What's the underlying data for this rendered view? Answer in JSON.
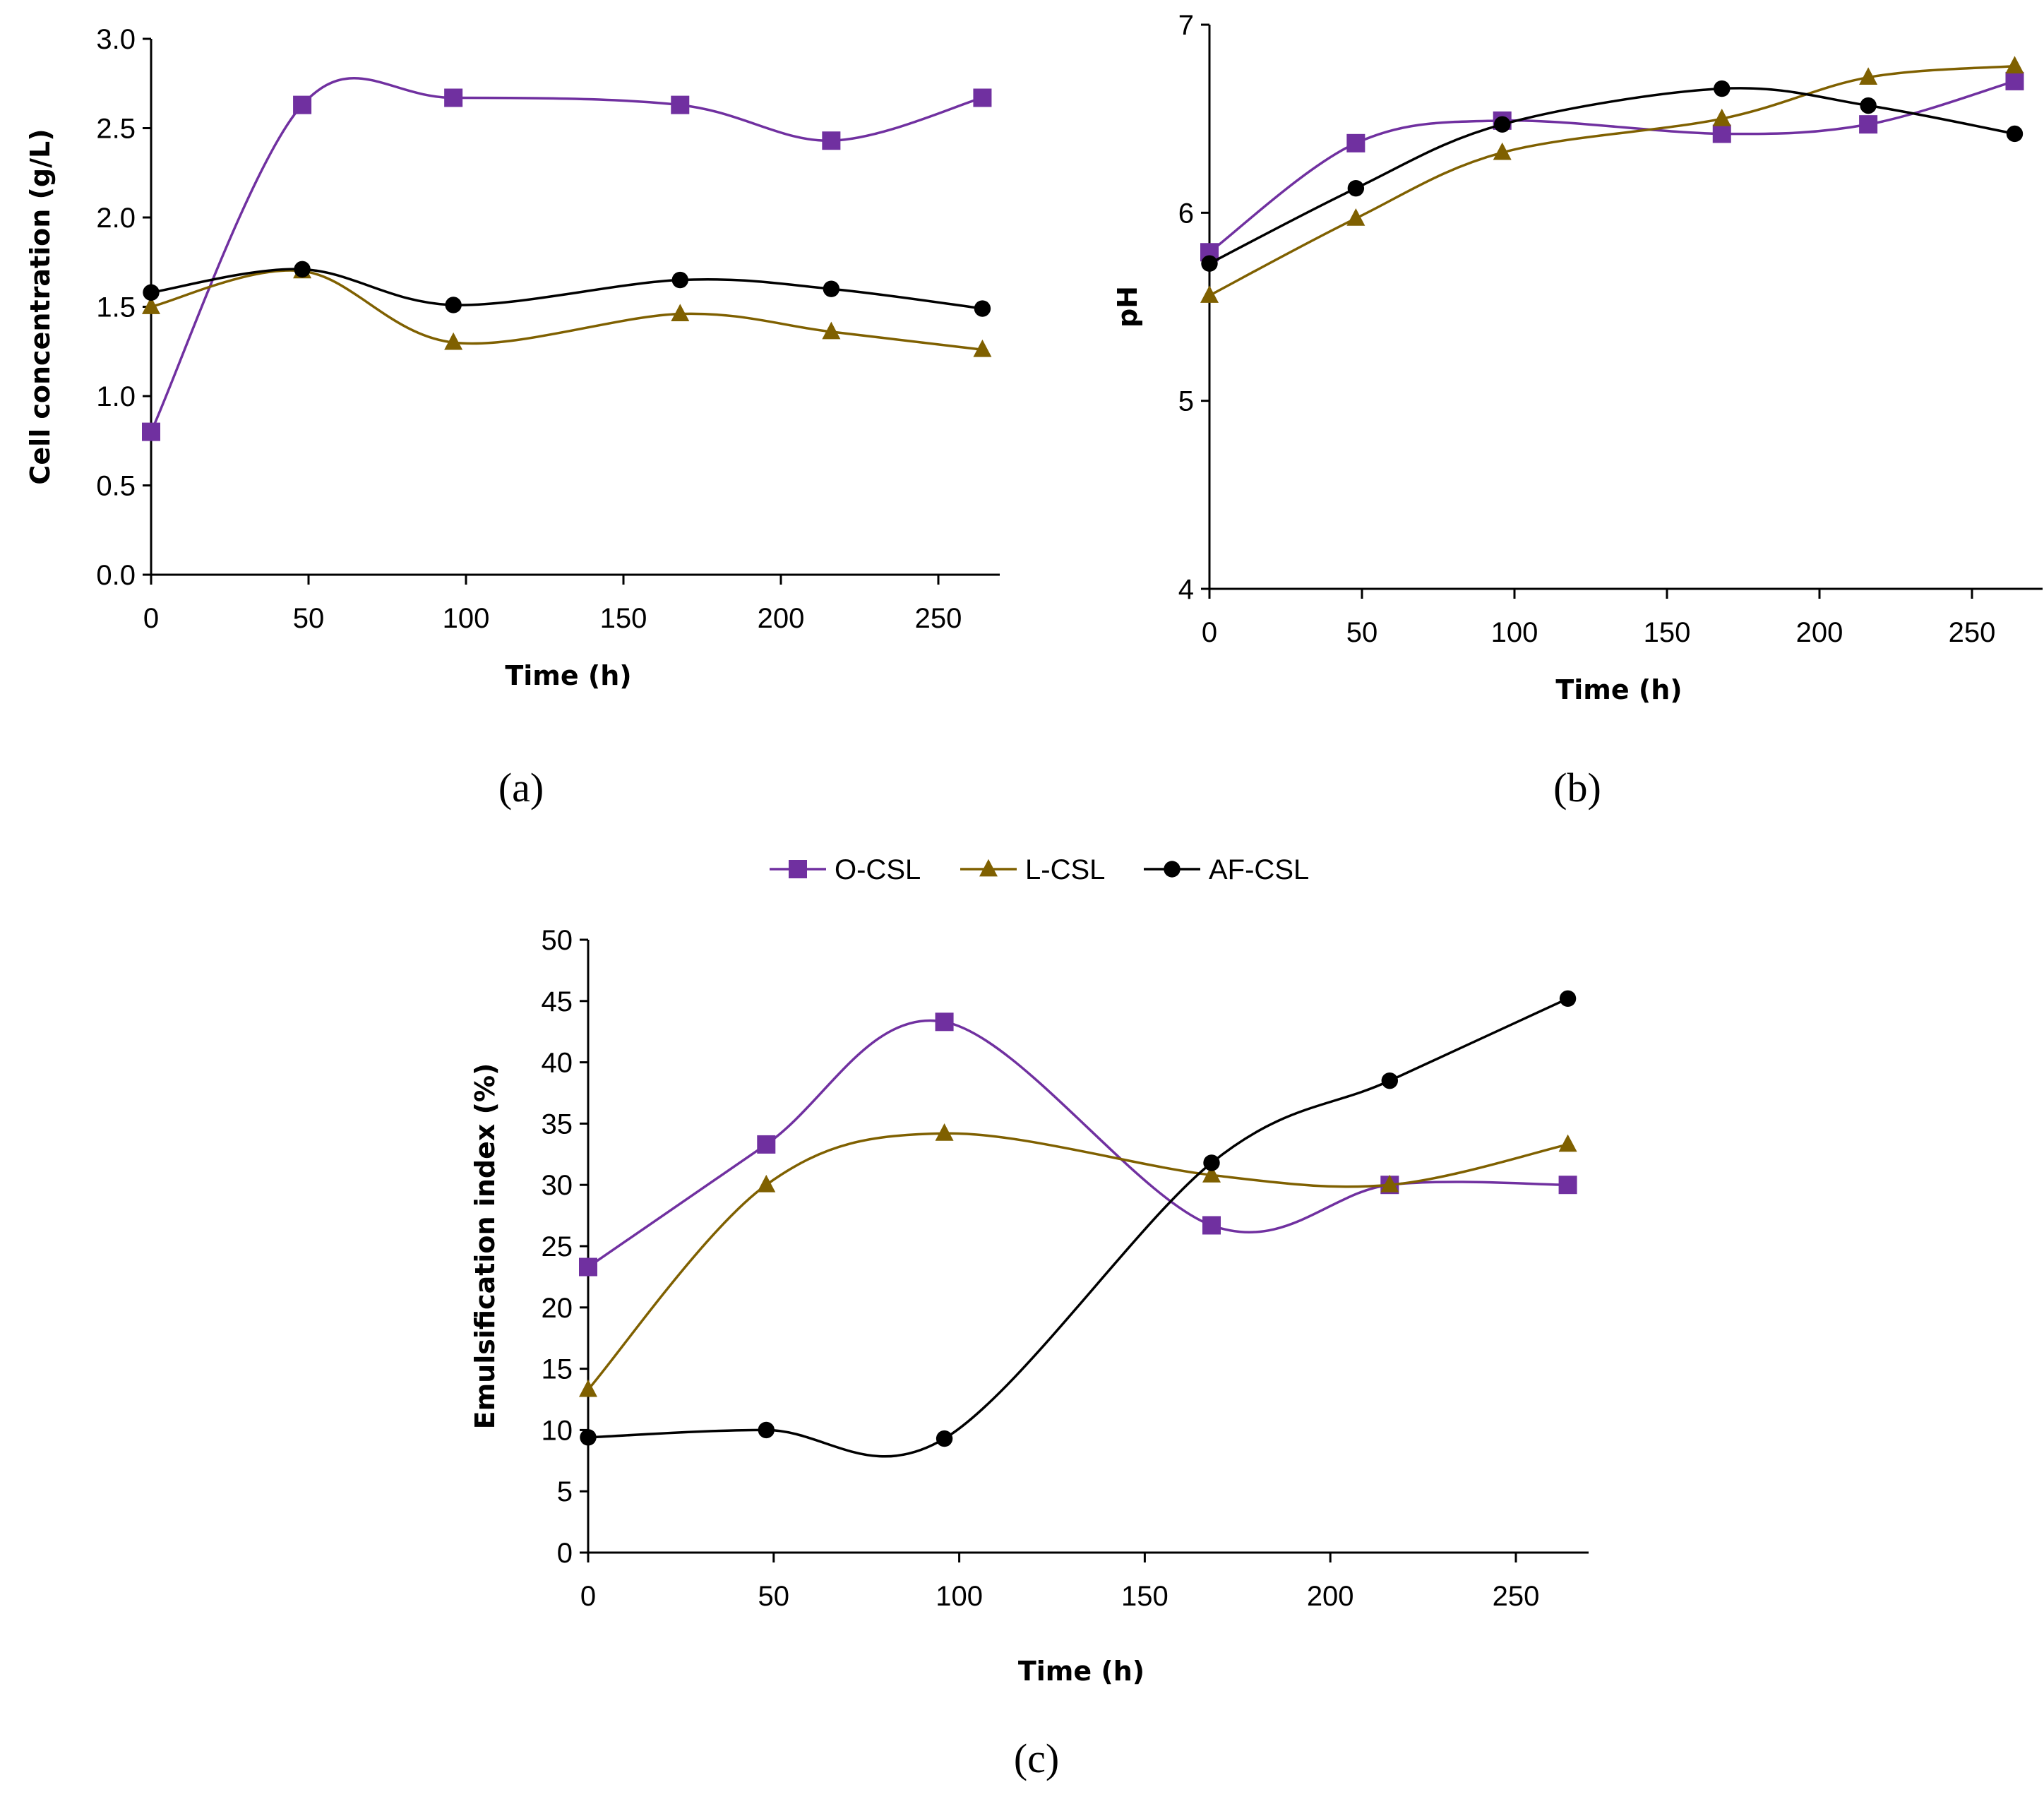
{
  "colors": {
    "O-CSL": "#7030A0",
    "L-CSL": "#7F6000",
    "AF-CSL": "#000000",
    "axis": "#000000"
  },
  "legend": [
    {
      "name": "O-CSL",
      "marker": "square"
    },
    {
      "name": "L-CSL",
      "marker": "triangle"
    },
    {
      "name": "AF-CSL",
      "marker": "circle"
    }
  ],
  "chart_data": [
    {
      "id": "a",
      "panel_label": "(a)",
      "type": "line",
      "xlabel": "Time (h)",
      "ylabel": "Cell concentration (g/L)",
      "xlim": [
        0,
        270
      ],
      "ylim": [
        0,
        3.0
      ],
      "xticks": [
        "0",
        "50",
        "100",
        "150",
        "200",
        "250"
      ],
      "yticks": [
        "0.0",
        "0.5",
        "1.0",
        "1.5",
        "2.0",
        "2.5",
        "3.0"
      ],
      "x": [
        0,
        48,
        96,
        168,
        216,
        264
      ],
      "series": [
        {
          "name": "O-CSL",
          "values": [
            0.8,
            2.63,
            2.67,
            2.63,
            2.43,
            2.67
          ]
        },
        {
          "name": "L-CSL",
          "values": [
            1.5,
            1.7,
            1.3,
            1.46,
            1.36,
            1.26
          ]
        },
        {
          "name": "AF-CSL",
          "values": [
            1.58,
            1.71,
            1.51,
            1.65,
            1.6,
            1.49
          ]
        }
      ]
    },
    {
      "id": "b",
      "panel_label": "(b)",
      "type": "line",
      "xlabel": "Time (h)",
      "ylabel": "pH",
      "xlim": [
        0,
        270
      ],
      "ylim": [
        4,
        7
      ],
      "xticks": [
        "0",
        "50",
        "100",
        "150",
        "200",
        "250"
      ],
      "yticks": [
        "4",
        "5",
        "6",
        "7"
      ],
      "x": [
        0,
        48,
        96,
        168,
        216,
        264
      ],
      "series": [
        {
          "name": "O-CSL",
          "values": [
            5.79,
            6.37,
            6.49,
            6.42,
            6.47,
            6.7
          ]
        },
        {
          "name": "L-CSL",
          "values": [
            5.56,
            5.97,
            6.32,
            6.5,
            6.72,
            6.78
          ]
        },
        {
          "name": "AF-CSL",
          "values": [
            5.73,
            6.13,
            6.47,
            6.66,
            6.57,
            6.42
          ]
        }
      ]
    },
    {
      "id": "c",
      "panel_label": "(c)",
      "type": "line",
      "xlabel": "Time (h)",
      "ylabel": "Emulsification index (%)",
      "xlim": [
        0,
        270
      ],
      "ylim": [
        0,
        50
      ],
      "xticks": [
        "0",
        "50",
        "100",
        "150",
        "200",
        "250"
      ],
      "yticks": [
        "0",
        "5",
        "10",
        "15",
        "20",
        "25",
        "30",
        "35",
        "40",
        "45",
        "50"
      ],
      "x": [
        0,
        48,
        96,
        168,
        216,
        264
      ],
      "series": [
        {
          "name": "O-CSL",
          "values": [
            23.3,
            33.3,
            43.3,
            26.7,
            30.0,
            30.0
          ]
        },
        {
          "name": "L-CSL",
          "values": [
            13.3,
            30.0,
            34.2,
            30.8,
            30.0,
            33.3
          ]
        },
        {
          "name": "AF-CSL",
          "values": [
            9.4,
            10.0,
            9.3,
            31.8,
            38.5,
            45.2
          ]
        }
      ]
    }
  ]
}
